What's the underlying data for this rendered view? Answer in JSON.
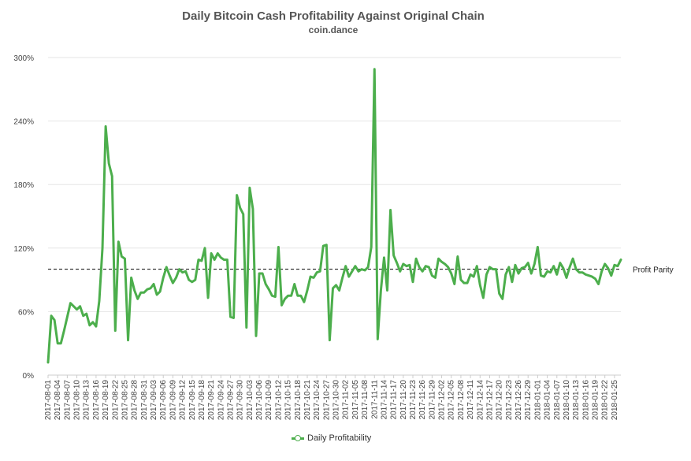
{
  "chart_data": {
    "type": "line",
    "title": "Daily Bitcoin Cash Profitability Against Original Chain",
    "subtitle": "coin.dance",
    "xlabel": "",
    "ylabel": "",
    "x_start": "2017-08-01",
    "x_end": "2018-01-27",
    "x_tick_labels": [
      "2017-08-01",
      "2017-08-04",
      "2017-08-07",
      "2017-08-10",
      "2017-08-13",
      "2017-08-16",
      "2017-08-19",
      "2017-08-22",
      "2017-08-25",
      "2017-08-28",
      "2017-08-31",
      "2017-09-03",
      "2017-09-06",
      "2017-09-09",
      "2017-09-12",
      "2017-09-15",
      "2017-09-18",
      "2017-09-21",
      "2017-09-24",
      "2017-09-27",
      "2017-09-30",
      "2017-10-03",
      "2017-10-06",
      "2017-10-09",
      "2017-10-12",
      "2017-10-15",
      "2017-10-18",
      "2017-10-21",
      "2017-10-24",
      "2017-10-27",
      "2017-10-30",
      "2017-11-02",
      "2017-11-05",
      "2017-11-08",
      "2017-11-11",
      "2017-11-14",
      "2017-11-17",
      "2017-11-20",
      "2017-11-23",
      "2017-11-26",
      "2017-11-29",
      "2017-12-02",
      "2017-12-05",
      "2017-12-08",
      "2017-12-11",
      "2017-12-14",
      "2017-12-17",
      "2017-12-20",
      "2017-12-23",
      "2017-12-26",
      "2017-12-29",
      "2018-01-01",
      "2018-01-04",
      "2018-01-07",
      "2018-01-10",
      "2018-01-13",
      "2018-01-16",
      "2018-01-19",
      "2018-01-22",
      "2018-01-25"
    ],
    "y_tick_labels": [
      "0%",
      "60%",
      "120%",
      "180%",
      "240%",
      "300%"
    ],
    "ylim": [
      0,
      300
    ],
    "y_unit": "%",
    "grid": true,
    "reference_line": {
      "value": 100,
      "label": "Profit Parity",
      "style": "dashed"
    },
    "series": [
      {
        "name": "Daily Profitability",
        "color": "#4cae4c",
        "values": [
          12,
          56,
          52,
          30,
          30,
          42,
          55,
          68,
          65,
          62,
          65,
          56,
          58,
          47,
          50,
          46,
          70,
          120,
          235,
          200,
          188,
          42,
          126,
          112,
          110,
          33,
          92,
          80,
          72,
          78,
          78,
          81,
          82,
          86,
          76,
          79,
          92,
          102,
          94,
          87,
          92,
          100,
          97,
          98,
          90,
          88,
          90,
          109,
          108,
          120,
          73,
          115,
          109,
          115,
          111,
          109,
          109,
          55,
          54,
          170,
          158,
          152,
          45,
          177,
          157,
          37,
          96,
          96,
          86,
          81,
          75,
          74,
          121,
          66,
          72,
          75,
          75,
          86,
          75,
          75,
          69,
          80,
          93,
          92,
          97,
          98,
          122,
          123,
          33,
          82,
          85,
          80,
          92,
          103,
          93,
          98,
          103,
          98,
          100,
          99,
          102,
          121,
          289,
          34,
          80,
          111,
          80,
          156,
          113,
          106,
          98,
          105,
          103,
          104,
          88,
          110,
          102,
          98,
          103,
          102,
          94,
          92,
          110,
          107,
          105,
          102,
          96,
          86,
          112,
          90,
          87,
          87,
          95,
          93,
          103,
          85,
          73,
          95,
          102,
          100,
          100,
          77,
          72,
          95,
          102,
          88,
          104,
          96,
          101,
          102,
          106,
          96,
          105,
          121,
          94,
          93,
          98,
          97,
          103,
          95,
          106,
          101,
          92,
          102,
          110,
          100,
          97,
          97,
          95,
          94,
          93,
          91,
          86,
          98,
          105,
          101,
          94,
          104,
          103,
          109
        ]
      }
    ]
  },
  "legend": {
    "series_label": "Daily Profitability"
  },
  "colors": {
    "series": "#4cae4c",
    "grid": "#e6e6e6",
    "reference": "#000000",
    "axis_text": "#444444"
  }
}
